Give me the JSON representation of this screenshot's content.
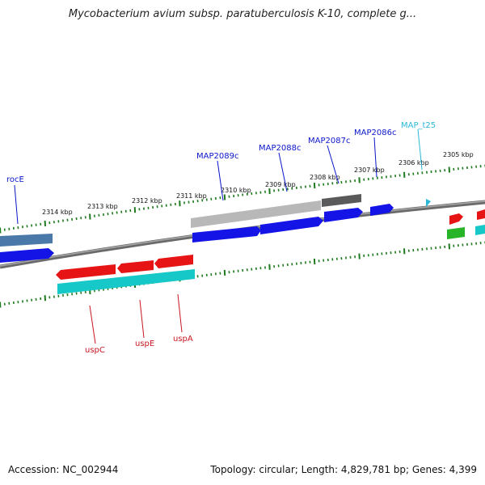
{
  "title": "Mycobacterium avium subsp. paratuberculosis K-10, complete g...",
  "footer": {
    "accession": "Accession: NC_002944",
    "summary": "Topology: circular; Length: 4,829,781 bp; Genes: 4,399"
  },
  "ticks": [
    "2314 kbp",
    "2313 kbp",
    "2312 kbp",
    "2311 kbp",
    "2310 kbp",
    "2309 kbp",
    "2308 kbp",
    "2307 kbp",
    "2306 kbp",
    "2305 kbp"
  ],
  "genes_top": [
    {
      "label": "rocE",
      "color": "#0a16c8"
    },
    {
      "label": "MAP2089c",
      "color": "#0a16c8"
    },
    {
      "label": "MAP2088c",
      "color": "#0a16c8"
    },
    {
      "label": "MAP2087c",
      "color": "#0a16c8"
    },
    {
      "label": "MAP2086c",
      "color": "#0a16c8"
    },
    {
      "label": "MAP_t25",
      "color": "#2bb8d8"
    }
  ],
  "genes_bottom": [
    {
      "label": "uspC",
      "color": "#c8141e"
    },
    {
      "label": "uspE",
      "color": "#c8141e"
    },
    {
      "label": "uspA",
      "color": "#c8141e"
    }
  ],
  "colors": {
    "backbone": "#7a7a7a",
    "tick": "#1e7a1e",
    "cds_blue": "#1414e6",
    "cds_red": "#e61414",
    "cds_cyan": "#16c8c8",
    "cds_green": "#28b428",
    "gray_light": "#b4b4b4",
    "gray_dark": "#555555",
    "steel": "#4a78a8"
  }
}
